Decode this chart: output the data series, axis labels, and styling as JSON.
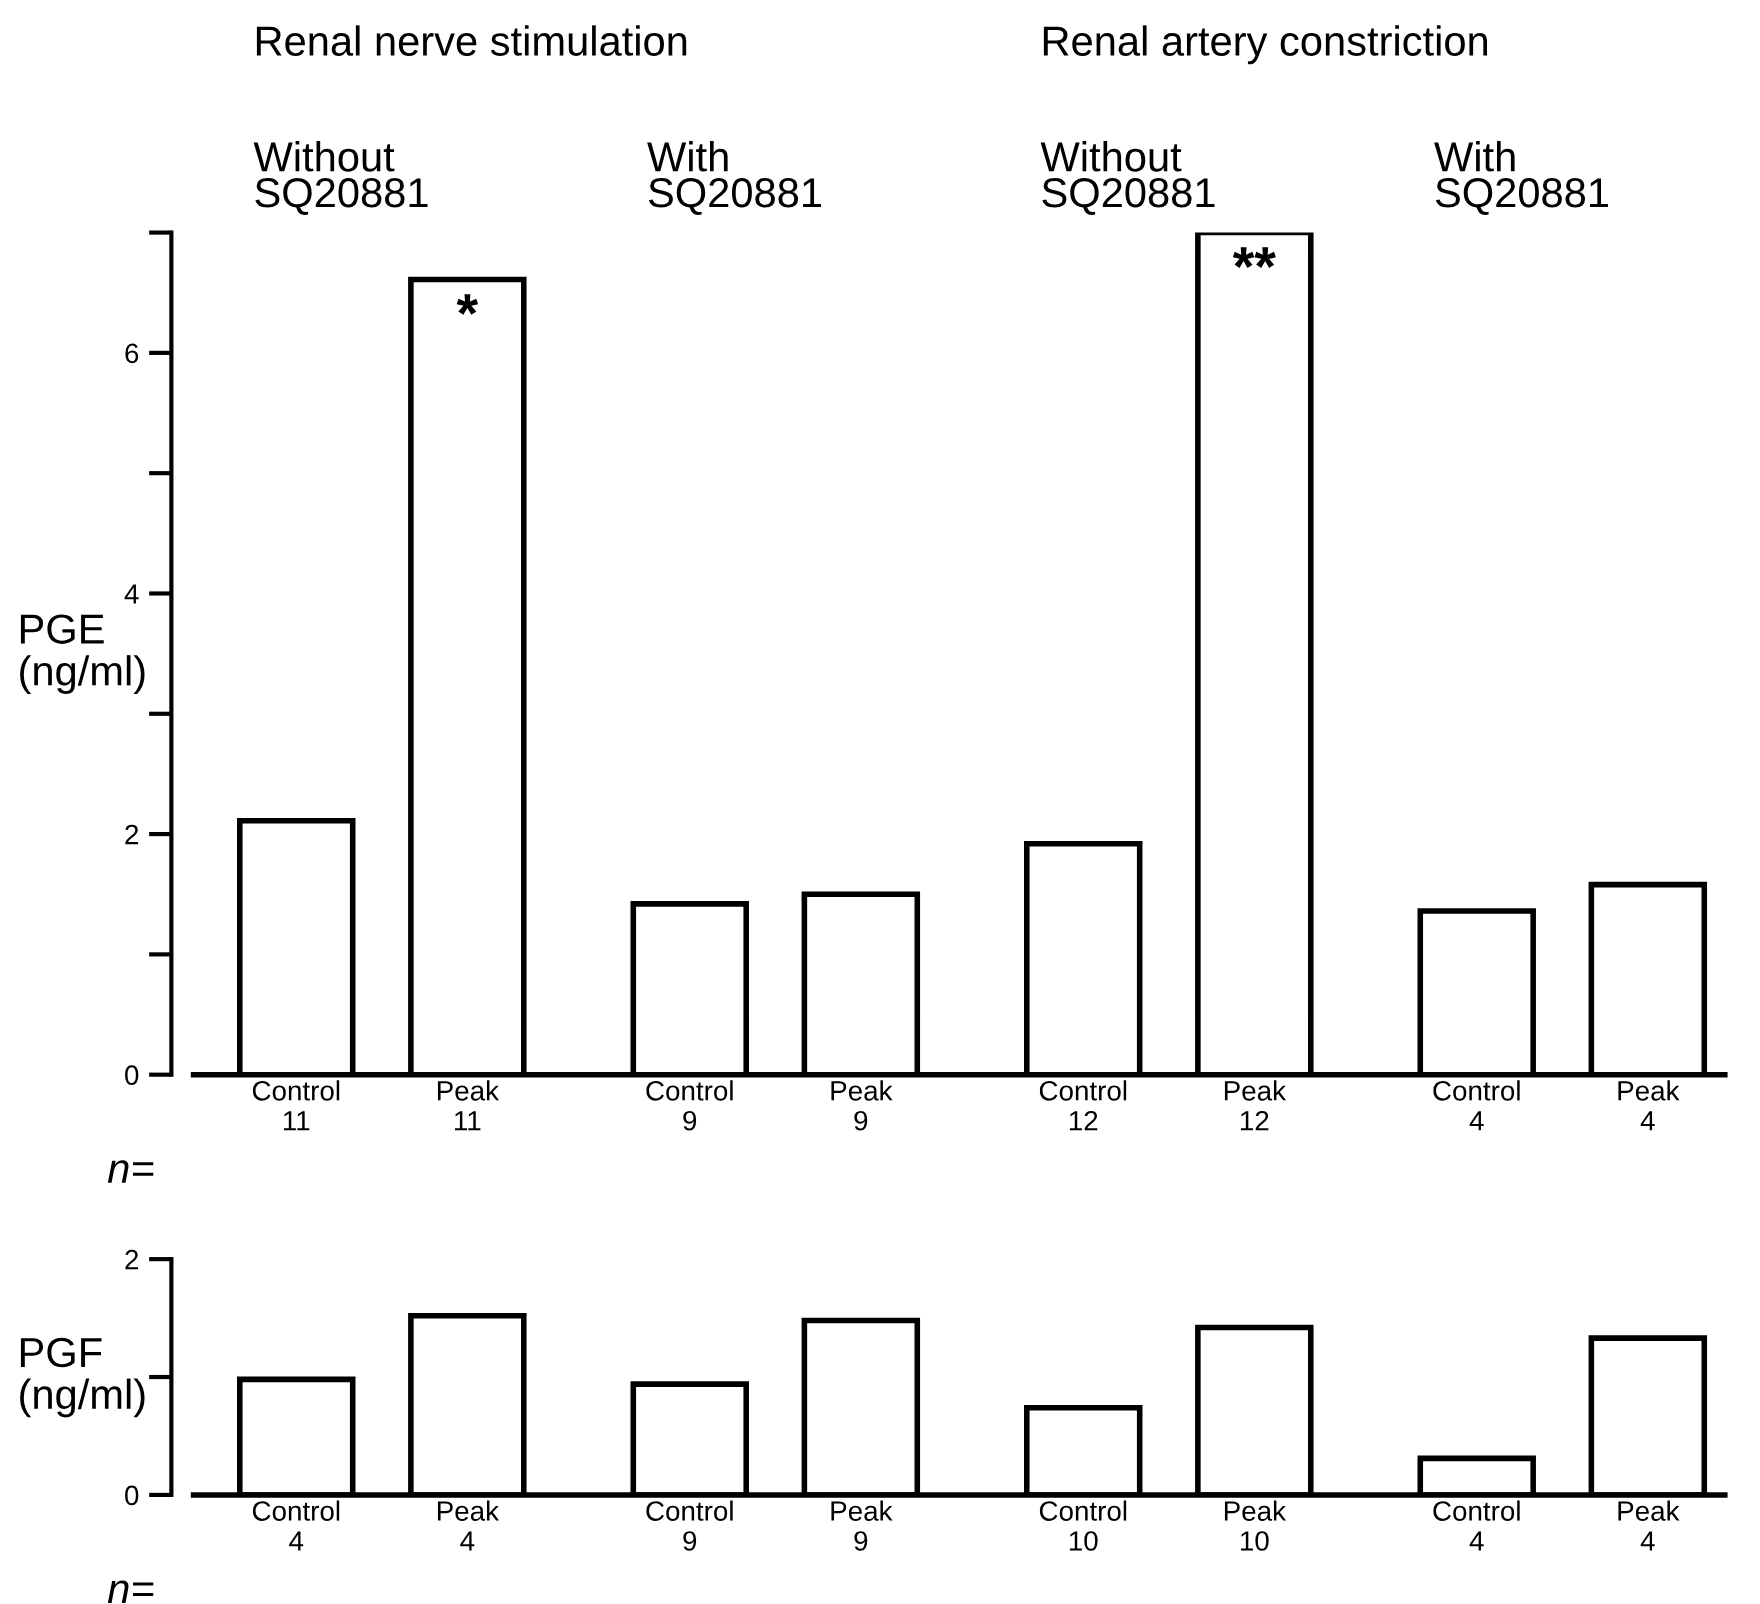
{
  "chart_data": [
    {
      "type": "bar",
      "ylabel": "PGE\n(ng/ml)",
      "categories": [
        "Control\n11",
        "Peak\n11",
        "Control\n9",
        "Peak\n9",
        "Control\n12",
        "Peak\n12",
        "Control\n4",
        "Peak\n4"
      ],
      "series": [
        {
          "color": "#ffffff",
          "values": [
            2.11,
            6.61,
            1.42,
            1.5,
            1.92,
            7.0,
            1.36,
            1.58
          ]
        }
      ],
      "value_labels": [
        null,
        "*",
        null,
        null,
        null,
        "**",
        null,
        null
      ],
      "ylim": [
        0,
        7
      ],
      "yticks": [
        0,
        {
          "value": 1,
          "label": null
        },
        2,
        {
          "value": 3,
          "label": null
        },
        4,
        {
          "value": 5,
          "label": null
        },
        6,
        {
          "value": 7,
          "label": null
        }
      ],
      "annotations": [
        "Renal nerve stimulation",
        "Renal artery constriction",
        "Without\nSQ20881",
        "With\nSQ20881",
        "Without\nSQ20881",
        "With\nSQ20881",
        "n="
      ],
      "grid": false,
      "legend": false
    },
    {
      "type": "bar",
      "ylabel": "PGF\n(ng/ml)",
      "categories": [
        "Control\n4",
        "Peak\n4",
        "Control\n9",
        "Peak\n9",
        "Control\n10",
        "Peak\n10",
        "Control\n4",
        "Peak\n4"
      ],
      "series": [
        {
          "color": "#ffffff",
          "values": [
            0.98,
            1.52,
            0.94,
            1.48,
            0.74,
            1.42,
            0.31,
            1.33
          ]
        }
      ],
      "ylim": [
        0,
        2
      ],
      "yticks": [
        0,
        {
          "value": 1,
          "label": null
        },
        2
      ],
      "annotations": [
        "n="
      ],
      "grid": false,
      "legend": false
    }
  ]
}
